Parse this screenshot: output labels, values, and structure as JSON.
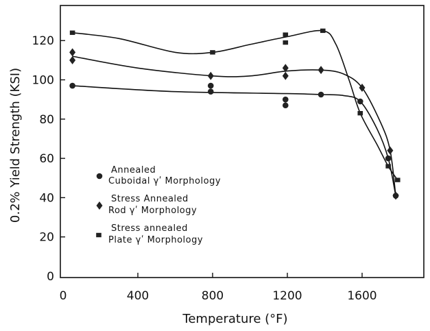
{
  "chart_data": {
    "type": "line",
    "xlabel": "Temperature (°F)",
    "ylabel": "0.2% Yield  Strength (KSI)",
    "xlim": [
      0,
      1880
    ],
    "ylim": [
      0,
      130
    ],
    "xticks": [
      0,
      400,
      800,
      1200,
      1600
    ],
    "yticks": [
      0,
      20,
      40,
      60,
      80,
      100,
      120
    ],
    "grid": false,
    "legend_position": "left-center",
    "series": [
      {
        "marker": "circle",
        "legend_lines": [
          "Annealed",
          "Cuboidal γʹ Morphology"
        ],
        "points": [
          [
            50,
            97
          ],
          [
            790,
            97
          ],
          [
            790,
            94
          ],
          [
            1190,
            90
          ],
          [
            1190,
            87
          ],
          [
            1380,
            92.5
          ],
          [
            1590,
            89
          ],
          [
            1740,
            60
          ],
          [
            1780,
            41
          ]
        ],
        "curve": [
          [
            50,
            97
          ],
          [
            600,
            94
          ],
          [
            1200,
            93
          ],
          [
            1380,
            92.5
          ],
          [
            1500,
            92
          ],
          [
            1590,
            89
          ],
          [
            1680,
            75
          ],
          [
            1740,
            60
          ],
          [
            1780,
            41
          ]
        ]
      },
      {
        "marker": "diamond",
        "legend_lines": [
          "Stress  Annealed",
          "Rod γʹ Morphology"
        ],
        "points": [
          [
            50,
            114
          ],
          [
            50,
            110
          ],
          [
            790,
            102
          ],
          [
            1190,
            106
          ],
          [
            1190,
            102
          ],
          [
            1380,
            105
          ],
          [
            1600,
            96
          ],
          [
            1750,
            64
          ],
          [
            1780,
            41
          ]
        ],
        "curve": [
          [
            50,
            112
          ],
          [
            400,
            106
          ],
          [
            800,
            102
          ],
          [
            1000,
            102
          ],
          [
            1200,
            104.5
          ],
          [
            1380,
            105
          ],
          [
            1500,
            103
          ],
          [
            1600,
            96
          ],
          [
            1700,
            78
          ],
          [
            1750,
            64
          ],
          [
            1780,
            41
          ]
        ]
      },
      {
        "marker": "square",
        "legend_lines": [
          "Stress  annealed",
          "Plate γʹ Morphology"
        ],
        "points": [
          [
            50,
            124
          ],
          [
            800,
            114
          ],
          [
            1190,
            123
          ],
          [
            1190,
            119
          ],
          [
            1390,
            125
          ],
          [
            1590,
            83
          ],
          [
            1740,
            56
          ],
          [
            1790,
            49
          ]
        ],
        "curve": [
          [
            50,
            124
          ],
          [
            300,
            121
          ],
          [
            600,
            114
          ],
          [
            800,
            114
          ],
          [
            1000,
            118
          ],
          [
            1200,
            122
          ],
          [
            1390,
            125
          ],
          [
            1460,
            118
          ],
          [
            1530,
            100
          ],
          [
            1590,
            83
          ],
          [
            1680,
            67
          ],
          [
            1740,
            56
          ],
          [
            1790,
            49
          ]
        ]
      }
    ]
  }
}
